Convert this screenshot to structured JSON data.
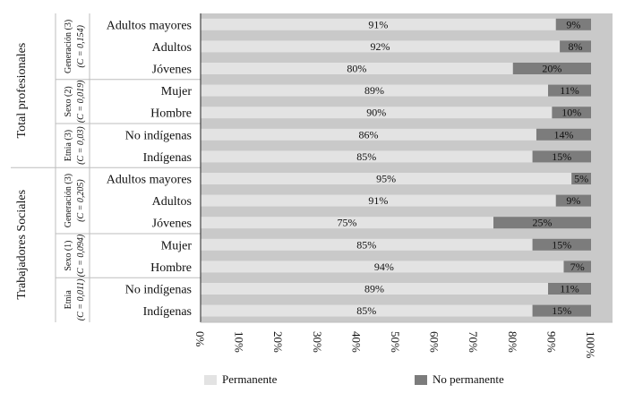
{
  "chart_data": {
    "type": "bar",
    "orientation": "horizontal",
    "stacked": true,
    "title": "",
    "xlabel": "",
    "ylabel": "",
    "xlim": [
      0,
      100
    ],
    "x_ticks": [
      "0%",
      "10%",
      "20%",
      "30%",
      "40%",
      "50%",
      "60%",
      "70%",
      "80%",
      "90%",
      "100%"
    ],
    "legend_position": "bottom",
    "colors": {
      "Permanente": "#e3e3e3",
      "No permanente": "#7c7c7c",
      "background": "#c9c9c9"
    },
    "series_names": [
      "Permanente",
      "No permanente"
    ],
    "groups": [
      {
        "label": "Total profesionales",
        "subgroups": [
          {
            "label": "Generación (3)",
            "stat": "(C = 0,154)",
            "rows": [
              {
                "label": "Adultos mayores",
                "Permanente": 91,
                "No permanente": 9,
                "Permanente_label": "91%",
                "No permanente_label": "9%"
              },
              {
                "label": "Adultos",
                "Permanente": 92,
                "No permanente": 8,
                "Permanente_label": "92%",
                "No permanente_label": "8%"
              },
              {
                "label": "Jóvenes",
                "Permanente": 80,
                "No permanente": 20,
                "Permanente_label": "80%",
                "No permanente_label": "20%"
              }
            ]
          },
          {
            "label": "Sexo (2)",
            "stat": "(C = 0,019)",
            "rows": [
              {
                "label": "Mujer",
                "Permanente": 89,
                "No permanente": 11,
                "Permanente_label": "89%",
                "No permanente_label": "11%"
              },
              {
                "label": "Hombre",
                "Permanente": 90,
                "No permanente": 10,
                "Permanente_label": "90%",
                "No permanente_label": "10%"
              }
            ]
          },
          {
            "label": "Etnia (3)",
            "stat": "(C = 0,03)",
            "rows": [
              {
                "label": "No indígenas",
                "Permanente": 86,
                "No permanente": 14,
                "Permanente_label": "86%",
                "No permanente_label": "14%"
              },
              {
                "label": "Indígenas",
                "Permanente": 85,
                "No permanente": 15,
                "Permanente_label": "85%",
                "No permanente_label": "15%"
              }
            ]
          }
        ]
      },
      {
        "label": "Trabajadores Sociales",
        "subgroups": [
          {
            "label": "Generación (3)",
            "stat": "(C = 0,205)",
            "rows": [
              {
                "label": "Adultos mayores",
                "Permanente": 95,
                "No permanente": 5,
                "Permanente_label": "95%",
                "No permanente_label": "5%"
              },
              {
                "label": "Adultos",
                "Permanente": 91,
                "No permanente": 9,
                "Permanente_label": "91%",
                "No permanente_label": "9%"
              },
              {
                "label": "Jóvenes",
                "Permanente": 75,
                "No permanente": 25,
                "Permanente_label": "75%",
                "No permanente_label": "25%"
              }
            ]
          },
          {
            "label": "Sexo (1)",
            "stat": "(C = 0,094)",
            "rows": [
              {
                "label": "Mujer",
                "Permanente": 85,
                "No permanente": 15,
                "Permanente_label": "85%",
                "No permanente_label": "15%"
              },
              {
                "label": "Hombre",
                "Permanente": 94,
                "No permanente": 7,
                "Permanente_label": "94%",
                "No permanente_label": "7%"
              }
            ]
          },
          {
            "label": "Etnia",
            "stat": "(C = 0,011)",
            "rows": [
              {
                "label": "No indígenas",
                "Permanente": 89,
                "No permanente": 11,
                "Permanente_label": "89%",
                "No permanente_label": "11%"
              },
              {
                "label": "Indígenas",
                "Permanente": 85,
                "No permanente": 15,
                "Permanente_label": "85%",
                "No permanente_label": "15%"
              }
            ]
          }
        ]
      }
    ]
  }
}
